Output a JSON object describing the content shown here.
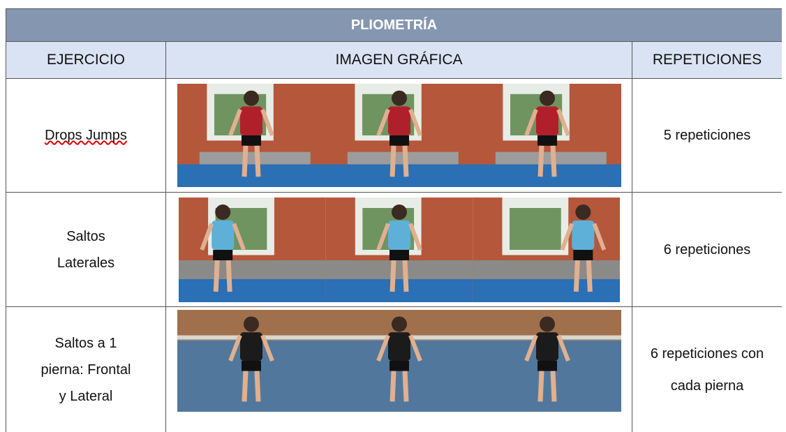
{
  "header": {
    "title": "PLIOMETRÍA"
  },
  "table": {
    "columns": [
      "EJERCICIO",
      "IMAGEN GRÁFICA",
      "REPETICIONES"
    ],
    "rows": [
      [
        "Drops Jumps",
        "5 repeticiones"
      ],
      [
        "Saltos Laterales",
        "6 repeticiones"
      ],
      [
        "Saltos a 1 pierna: Frontal y Lateral",
        "6 repeticiones con cada pierna"
      ]
    ]
  }
}
